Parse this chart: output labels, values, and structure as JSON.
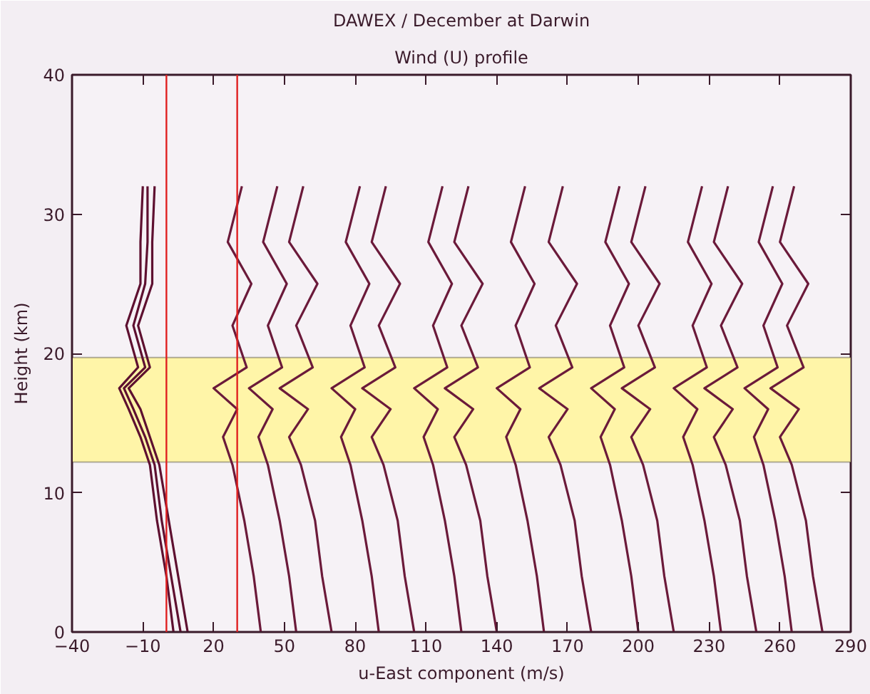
{
  "chart_data": {
    "type": "line",
    "title": "DAWEX / December at Darwin",
    "subtitle": "Wind (U) profile",
    "xlabel": "u-East component (m/s)",
    "ylabel": "Height (km)",
    "xlim": [
      -40,
      290
    ],
    "xticks": [
      -40,
      -10,
      20,
      50,
      80,
      110,
      140,
      170,
      200,
      230,
      260,
      290
    ],
    "ylim": [
      0,
      40
    ],
    "yticks": [
      0,
      10,
      20,
      30,
      40
    ],
    "grid": false,
    "line_style": "solid",
    "ref_lines": [
      {
        "axis": "x",
        "value": 0,
        "color": "#e02020"
      },
      {
        "axis": "x",
        "value": 30,
        "color": "#e02020"
      }
    ],
    "bands": [
      {
        "axis": "y",
        "from": 12.2,
        "to": 19.7,
        "color": "#fff5a8"
      }
    ],
    "series": [
      {
        "color": "#5e1030",
        "x": [
          6,
          2,
          -2,
          -5,
          -9,
          -14,
          -18,
          -9,
          -14,
          -9,
          -8,
          -8
        ],
        "values": [
          0,
          4,
          8,
          12,
          14,
          16,
          17.5,
          19,
          22,
          25,
          28,
          32
        ]
      },
      {
        "color": "#5e1030",
        "x": [
          9,
          5,
          1,
          -3,
          -7,
          -11,
          -16,
          -7,
          -12,
          -6,
          -6,
          -5
        ],
        "values": [
          0,
          4,
          8,
          12,
          14,
          16,
          17.5,
          19,
          22,
          25,
          28,
          32
        ]
      },
      {
        "color": "#5e1030",
        "x": [
          3,
          0,
          -4,
          -7,
          -11,
          -16,
          -20,
          -12,
          -17,
          -11,
          -11,
          -10
        ],
        "values": [
          0,
          4,
          8,
          12,
          14,
          16,
          17.5,
          19,
          22,
          25,
          28,
          32
        ]
      },
      {
        "color": "#6b1a3a",
        "x": [
          40,
          37,
          33,
          28,
          24,
          30,
          20,
          34,
          28,
          36,
          26,
          32
        ],
        "values": [
          0,
          4,
          8,
          12,
          14,
          16,
          17.5,
          19,
          22,
          25,
          28,
          32
        ]
      },
      {
        "color": "#6b1a3a",
        "x": [
          55,
          52,
          48,
          43,
          39,
          45,
          35,
          49,
          43,
          51,
          41,
          47
        ],
        "values": [
          0,
          4,
          8,
          12,
          14,
          16,
          17.5,
          19,
          22,
          25,
          28,
          32
        ]
      },
      {
        "color": "#6b1a3a",
        "x": [
          70,
          66,
          63,
          57,
          52,
          60,
          48,
          62,
          55,
          64,
          52,
          58
        ],
        "values": [
          0,
          4,
          8,
          12,
          14,
          16,
          17.5,
          19,
          22,
          25,
          28,
          32
        ]
      },
      {
        "color": "#6b1a3a",
        "x": [
          90,
          87,
          83,
          78,
          74,
          80,
          70,
          84,
          78,
          86,
          76,
          82
        ],
        "values": [
          0,
          4,
          8,
          12,
          14,
          16,
          17.5,
          19,
          22,
          25,
          28,
          32
        ]
      },
      {
        "color": "#6b1a3a",
        "x": [
          105,
          101,
          98,
          92,
          87,
          95,
          83,
          97,
          90,
          99,
          87,
          93
        ],
        "values": [
          0,
          4,
          8,
          12,
          14,
          16,
          17.5,
          19,
          22,
          25,
          28,
          32
        ]
      },
      {
        "color": "#6b1a3a",
        "x": [
          125,
          122,
          118,
          113,
          109,
          115,
          105,
          119,
          113,
          121,
          111,
          117
        ],
        "values": [
          0,
          4,
          8,
          12,
          14,
          16,
          17.5,
          19,
          22,
          25,
          28,
          32
        ]
      },
      {
        "color": "#6b1a3a",
        "x": [
          140,
          136,
          133,
          127,
          122,
          130,
          118,
          132,
          125,
          134,
          122,
          128
        ],
        "values": [
          0,
          4,
          8,
          12,
          14,
          16,
          17.5,
          19,
          22,
          25,
          28,
          32
        ]
      },
      {
        "color": "#6b1a3a",
        "x": [
          160,
          157,
          153,
          148,
          144,
          150,
          140,
          154,
          148,
          156,
          146,
          152
        ],
        "values": [
          0,
          4,
          8,
          12,
          14,
          16,
          17.5,
          19,
          22,
          25,
          28,
          32
        ]
      },
      {
        "color": "#6b1a3a",
        "x": [
          180,
          176,
          173,
          167,
          162,
          170,
          158,
          172,
          165,
          174,
          162,
          168
        ],
        "values": [
          0,
          4,
          8,
          12,
          14,
          16,
          17.5,
          19,
          22,
          25,
          28,
          32
        ]
      },
      {
        "color": "#6b1a3a",
        "x": [
          200,
          197,
          193,
          188,
          184,
          190,
          180,
          194,
          188,
          196,
          186,
          192
        ],
        "values": [
          0,
          4,
          8,
          12,
          14,
          16,
          17.5,
          19,
          22,
          25,
          28,
          32
        ]
      },
      {
        "color": "#6b1a3a",
        "x": [
          215,
          211,
          208,
          202,
          197,
          205,
          193,
          207,
          200,
          209,
          197,
          203
        ],
        "values": [
          0,
          4,
          8,
          12,
          14,
          16,
          17.5,
          19,
          22,
          25,
          28,
          32
        ]
      },
      {
        "color": "#6b1a3a",
        "x": [
          235,
          232,
          228,
          223,
          219,
          225,
          215,
          229,
          223,
          231,
          221,
          227
        ],
        "values": [
          0,
          4,
          8,
          12,
          14,
          16,
          17.5,
          19,
          22,
          25,
          28,
          32
        ]
      },
      {
        "color": "#6b1a3a",
        "x": [
          250,
          246,
          243,
          237,
          232,
          240,
          228,
          242,
          235,
          244,
          232,
          238
        ],
        "values": [
          0,
          4,
          8,
          12,
          14,
          16,
          17.5,
          19,
          22,
          25,
          28,
          32
        ]
      },
      {
        "color": "#6b1a3a",
        "x": [
          265,
          262,
          258,
          253,
          249,
          255,
          245,
          259,
          253,
          261,
          251,
          257
        ],
        "values": [
          0,
          4,
          8,
          12,
          14,
          16,
          17.5,
          19,
          22,
          25,
          28,
          32
        ]
      },
      {
        "color": "#6b1a3a",
        "x": [
          278,
          274,
          271,
          265,
          260,
          268,
          256,
          270,
          263,
          272,
          260,
          266
        ],
        "values": [
          0,
          4,
          8,
          12,
          14,
          16,
          17.5,
          19,
          22,
          25,
          28,
          32
        ]
      }
    ]
  }
}
